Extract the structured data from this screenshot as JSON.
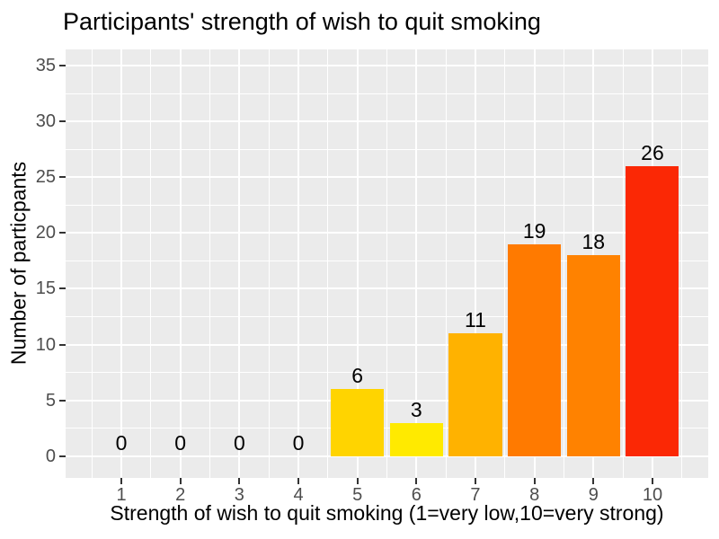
{
  "figure": {
    "background": "#FFFFFF",
    "panel_background": "#EBEBEB",
    "grid_color": "#FFFFFF",
    "tick_label_color": "#4D4D4D",
    "tick_mark_color": "#333333",
    "text_color": "#000000"
  },
  "chart_data": {
    "type": "bar",
    "title": "Participants' strength of wish to quit smoking",
    "xlabel": "Strength of wish to quit smoking (1=very low,10=very strong)",
    "ylabel": "Number of particpants",
    "categories": [
      "1",
      "2",
      "3",
      "4",
      "5",
      "6",
      "7",
      "8",
      "9",
      "10"
    ],
    "values": [
      0,
      0,
      0,
      0,
      6,
      3,
      11,
      19,
      18,
      26
    ],
    "value_labels": [
      "0",
      "0",
      "0",
      "0",
      "6",
      "3",
      "11",
      "19",
      "18",
      "26"
    ],
    "bar_colors": [
      null,
      null,
      null,
      null,
      "#FFD400",
      "#FFEA00",
      "#FFB200",
      "#FF7A00",
      "#FF8200",
      "#FB2805"
    ],
    "y_ticks": [
      0,
      5,
      10,
      15,
      20,
      25,
      30,
      35
    ],
    "y_minor_ticks": [
      2.5,
      7.5,
      12.5,
      17.5,
      22.5,
      27.5,
      32.5
    ],
    "x_minor_positions": [
      0.5,
      1.5,
      2.5,
      3.5,
      4.5,
      5.5,
      6.5,
      7.5,
      8.5,
      9.5,
      10.5
    ],
    "ylim": [
      -1.95,
      36.45
    ],
    "xlim": [
      0.055,
      10.945
    ],
    "bar_width_units": 0.9,
    "grid": true,
    "legend": "none"
  }
}
